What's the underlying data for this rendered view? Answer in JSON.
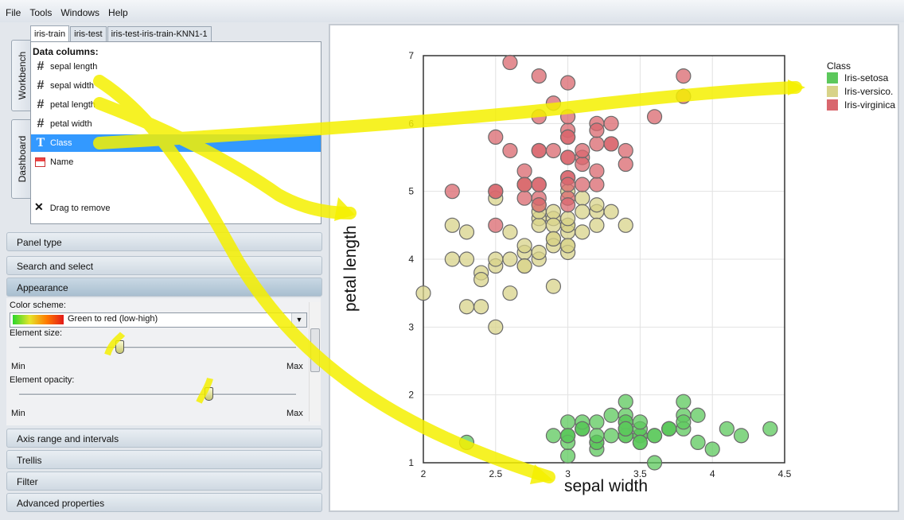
{
  "menubar": [
    "File",
    "Tools",
    "Windows",
    "Help"
  ],
  "side_tabs": [
    "Workbench",
    "Dashboard"
  ],
  "tabs": [
    "iris-train",
    "iris-test",
    "iris-test-iris-train-KNN1-1"
  ],
  "columns": {
    "header": "Data columns:",
    "items": [
      {
        "label": "sepal length",
        "icon": "hash-icon"
      },
      {
        "label": "sepal width",
        "icon": "hash-icon"
      },
      {
        "label": "petal length",
        "icon": "hash-icon"
      },
      {
        "label": "petal width",
        "icon": "hash-icon"
      },
      {
        "label": "Class",
        "icon": "text-type-icon"
      },
      {
        "label": "Name",
        "icon": "name-column-icon"
      }
    ],
    "drag_hint": "Drag to remove"
  },
  "sections": {
    "panel_type": "Panel type",
    "search": "Search and select",
    "appearance": "Appearance",
    "axis": "Axis range and intervals",
    "trellis": "Trellis",
    "filter": "Filter",
    "advanced": "Advanced properties"
  },
  "appearance": {
    "color_scheme_label": "Color scheme:",
    "color_scheme_value": "Green to red (low-high)",
    "element_size_label": "Element size:",
    "element_size_value": 0.36,
    "element_opacity_label": "Element opacity:",
    "element_opacity_value": 0.68,
    "min": "Min",
    "max": "Max"
  },
  "chart_data": {
    "type": "scatter",
    "xlabel": "sepal width",
    "ylabel": "petal length",
    "xlim": [
      2,
      4.5
    ],
    "ylim": [
      1,
      7
    ],
    "xticks": [
      "2",
      "2.5",
      "3",
      "3.5",
      "4",
      "4.5"
    ],
    "yticks": [
      "1",
      "2",
      "3",
      "4",
      "5",
      "6",
      "7"
    ],
    "grid": true,
    "legend": {
      "title": "Class",
      "position": "top-right"
    },
    "series": [
      {
        "name": "Iris-setosa",
        "color": "#5cc85c",
        "points": [
          [
            3.5,
            1.4
          ],
          [
            3.0,
            1.4
          ],
          [
            3.2,
            1.3
          ],
          [
            3.1,
            1.5
          ],
          [
            3.6,
            1.4
          ],
          [
            3.9,
            1.7
          ],
          [
            3.4,
            1.4
          ],
          [
            3.4,
            1.5
          ],
          [
            2.9,
            1.4
          ],
          [
            3.1,
            1.5
          ],
          [
            3.7,
            1.5
          ],
          [
            3.4,
            1.6
          ],
          [
            3.0,
            1.4
          ],
          [
            3.0,
            1.1
          ],
          [
            4.0,
            1.2
          ],
          [
            4.4,
            1.5
          ],
          [
            3.9,
            1.3
          ],
          [
            3.5,
            1.4
          ],
          [
            3.8,
            1.7
          ],
          [
            3.8,
            1.5
          ],
          [
            3.4,
            1.7
          ],
          [
            3.7,
            1.5
          ],
          [
            3.6,
            1.0
          ],
          [
            3.3,
            1.7
          ],
          [
            3.4,
            1.9
          ],
          [
            3.0,
            1.6
          ],
          [
            3.4,
            1.6
          ],
          [
            3.5,
            1.5
          ],
          [
            3.4,
            1.4
          ],
          [
            3.2,
            1.6
          ],
          [
            3.1,
            1.6
          ],
          [
            3.4,
            1.5
          ],
          [
            4.1,
            1.5
          ],
          [
            4.2,
            1.4
          ],
          [
            3.1,
            1.5
          ],
          [
            3.2,
            1.2
          ],
          [
            3.5,
            1.3
          ],
          [
            3.6,
            1.4
          ],
          [
            3.0,
            1.3
          ],
          [
            3.4,
            1.5
          ],
          [
            3.5,
            1.3
          ],
          [
            2.3,
            1.3
          ],
          [
            3.2,
            1.3
          ],
          [
            3.5,
            1.6
          ],
          [
            3.8,
            1.9
          ],
          [
            3.0,
            1.4
          ],
          [
            3.8,
            1.6
          ],
          [
            3.2,
            1.4
          ],
          [
            3.7,
            1.5
          ],
          [
            3.3,
            1.4
          ]
        ]
      },
      {
        "name": "Iris-versico.",
        "color": "#d8d389",
        "points": [
          [
            3.2,
            4.7
          ],
          [
            3.2,
            4.5
          ],
          [
            3.1,
            4.9
          ],
          [
            2.3,
            4.0
          ],
          [
            2.8,
            4.6
          ],
          [
            2.8,
            4.5
          ],
          [
            3.3,
            4.7
          ],
          [
            2.4,
            3.3
          ],
          [
            2.9,
            4.6
          ],
          [
            2.7,
            3.9
          ],
          [
            2.0,
            3.5
          ],
          [
            3.0,
            4.2
          ],
          [
            2.2,
            4.0
          ],
          [
            2.9,
            4.7
          ],
          [
            2.9,
            3.6
          ],
          [
            3.1,
            4.4
          ],
          [
            3.0,
            4.5
          ],
          [
            2.7,
            4.1
          ],
          [
            2.2,
            4.5
          ],
          [
            2.5,
            3.9
          ],
          [
            3.2,
            4.8
          ],
          [
            2.8,
            4.0
          ],
          [
            2.5,
            4.9
          ],
          [
            2.8,
            4.7
          ],
          [
            2.9,
            4.3
          ],
          [
            3.0,
            4.4
          ],
          [
            2.8,
            4.8
          ],
          [
            3.0,
            5.0
          ],
          [
            2.9,
            4.5
          ],
          [
            2.6,
            3.5
          ],
          [
            2.4,
            3.8
          ],
          [
            2.4,
            3.7
          ],
          [
            2.7,
            3.9
          ],
          [
            2.7,
            5.1
          ],
          [
            3.0,
            4.5
          ],
          [
            3.4,
            4.5
          ],
          [
            3.1,
            4.7
          ],
          [
            2.3,
            4.4
          ],
          [
            3.0,
            4.1
          ],
          [
            2.5,
            4.0
          ],
          [
            2.6,
            4.4
          ],
          [
            3.0,
            4.6
          ],
          [
            2.6,
            4.0
          ],
          [
            2.3,
            3.3
          ],
          [
            2.7,
            4.2
          ],
          [
            3.0,
            4.2
          ],
          [
            2.9,
            4.2
          ],
          [
            2.9,
            4.3
          ],
          [
            2.5,
            3.0
          ],
          [
            2.8,
            4.1
          ]
        ]
      },
      {
        "name": "Iris-virginica",
        "color": "#d9676e",
        "points": [
          [
            3.3,
            6.0
          ],
          [
            2.7,
            5.1
          ],
          [
            3.0,
            5.9
          ],
          [
            2.9,
            5.6
          ],
          [
            3.0,
            5.8
          ],
          [
            3.0,
            6.6
          ],
          [
            2.5,
            4.5
          ],
          [
            2.9,
            6.3
          ],
          [
            2.5,
            5.8
          ],
          [
            3.6,
            6.1
          ],
          [
            3.2,
            5.1
          ],
          [
            2.7,
            5.3
          ],
          [
            3.0,
            5.5
          ],
          [
            2.5,
            5.0
          ],
          [
            2.8,
            5.1
          ],
          [
            3.2,
            5.3
          ],
          [
            3.0,
            5.5
          ],
          [
            3.8,
            6.7
          ],
          [
            2.6,
            6.9
          ],
          [
            2.2,
            5.0
          ],
          [
            3.2,
            5.7
          ],
          [
            2.8,
            4.9
          ],
          [
            2.8,
            6.7
          ],
          [
            2.7,
            4.9
          ],
          [
            3.3,
            5.7
          ],
          [
            3.2,
            6.0
          ],
          [
            2.8,
            4.8
          ],
          [
            3.0,
            4.9
          ],
          [
            2.8,
            5.6
          ],
          [
            3.0,
            5.8
          ],
          [
            2.8,
            6.1
          ],
          [
            3.8,
            6.4
          ],
          [
            2.8,
            5.6
          ],
          [
            2.8,
            5.1
          ],
          [
            2.6,
            5.6
          ],
          [
            3.0,
            6.1
          ],
          [
            3.4,
            5.6
          ],
          [
            3.1,
            5.5
          ],
          [
            3.0,
            4.8
          ],
          [
            3.1,
            5.4
          ],
          [
            3.1,
            5.6
          ],
          [
            3.1,
            5.1
          ],
          [
            2.7,
            5.1
          ],
          [
            3.2,
            5.9
          ],
          [
            3.3,
            5.7
          ],
          [
            3.0,
            5.2
          ],
          [
            2.5,
            5.0
          ],
          [
            3.0,
            5.2
          ],
          [
            3.4,
            5.4
          ],
          [
            3.0,
            5.1
          ]
        ]
      }
    ]
  }
}
